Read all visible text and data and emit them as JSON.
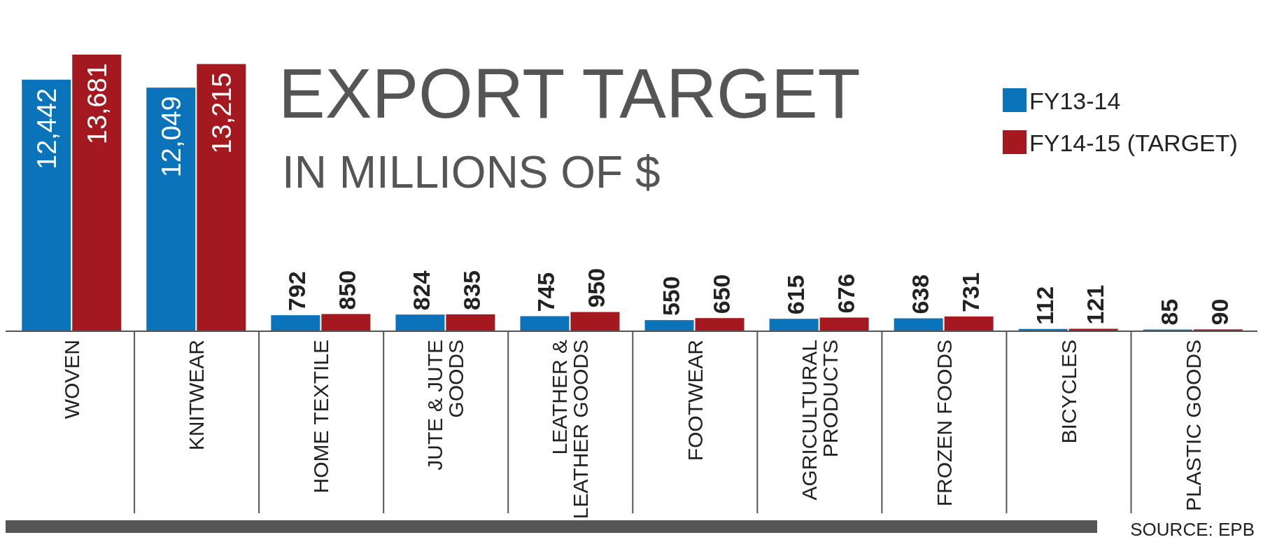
{
  "chart_data": {
    "type": "bar",
    "title": "EXPORT TARGET",
    "subtitle": "IN MILLIONS OF $",
    "categories": [
      "WOVEN",
      "KNITWEAR",
      "HOME TEXTILE",
      "JUTE & JUTE GOODS",
      "LEATHER & LEATHER GOODS",
      "FOOTWEAR",
      "AGRICULTURAL PRODUCTS",
      "FROZEN FOODS",
      "BICYCLES",
      "PLASTIC GOODS"
    ],
    "series": [
      {
        "name": "FY13-14",
        "color": "#0b73b9",
        "values": [
          12442,
          12049,
          792,
          824,
          745,
          550,
          615,
          638,
          112,
          85
        ],
        "value_labels": [
          "12,442",
          "12,049",
          "792",
          "824",
          "745",
          "550",
          "615",
          "638",
          "112",
          "85"
        ]
      },
      {
        "name": "FY14-15 (TARGET)",
        "color": "#a3191f",
        "values": [
          13681,
          13215,
          850,
          835,
          950,
          650,
          676,
          731,
          121,
          90
        ],
        "value_labels": [
          "13,681",
          "13,215",
          "850",
          "835",
          "950",
          "650",
          "676",
          "731",
          "121",
          "90"
        ]
      }
    ],
    "legend": "top right",
    "annotations": [
      "SOURCE: EPB"
    ]
  }
}
